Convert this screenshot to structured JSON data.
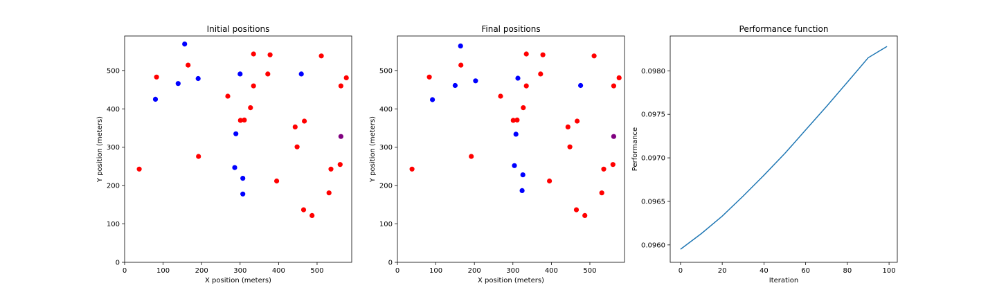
{
  "chart_data": [
    {
      "type": "scatter",
      "title": "Initial positions",
      "xlabel": "X position (meters)",
      "ylabel": "Y position (meters)",
      "xlim": [
        0,
        590
      ],
      "ylim": [
        0,
        590
      ],
      "xticks": [
        0,
        100,
        200,
        300,
        400,
        500
      ],
      "yticks": [
        0,
        100,
        200,
        300,
        400,
        500
      ],
      "grid": false,
      "series": [
        {
          "color": "#ff0000",
          "points": [
            [
              38,
              243
            ],
            [
              83,
              483
            ],
            [
              165,
              514
            ],
            [
              192,
              276
            ],
            [
              268,
              433
            ],
            [
              301,
              370
            ],
            [
              311,
              371
            ],
            [
              327,
              403
            ],
            [
              335,
              543
            ],
            [
              335,
              460
            ],
            [
              372,
              491
            ],
            [
              378,
              541
            ],
            [
              395,
              212
            ],
            [
              443,
              353
            ],
            [
              448,
              301
            ],
            [
              465,
              137
            ],
            [
              467,
              368
            ],
            [
              487,
              122
            ],
            [
              511,
              538
            ],
            [
              531,
              181
            ],
            [
              536,
              243
            ],
            [
              560,
              255
            ],
            [
              562,
              460
            ],
            [
              576,
              481
            ]
          ]
        },
        {
          "color": "#0000ff",
          "points": [
            [
              80,
              425
            ],
            [
              139,
              466
            ],
            [
              156,
              569
            ],
            [
              191,
              479
            ],
            [
              286,
              247
            ],
            [
              289,
              335
            ],
            [
              300,
              491
            ],
            [
              307,
              219
            ],
            [
              307,
              178
            ],
            [
              459,
              491
            ]
          ]
        },
        {
          "color": "#800080",
          "points": [
            [
              562,
              328
            ]
          ]
        }
      ]
    },
    {
      "type": "scatter",
      "title": "Final positions",
      "xlabel": "X position (meters)",
      "ylabel": "Y position (meters)",
      "xlim": [
        0,
        590
      ],
      "ylim": [
        0,
        590
      ],
      "xticks": [
        0,
        100,
        200,
        300,
        400,
        500
      ],
      "yticks": [
        0,
        100,
        200,
        300,
        400,
        500
      ],
      "grid": false,
      "series": [
        {
          "color": "#ff0000",
          "points": [
            [
              38,
              243
            ],
            [
              83,
              483
            ],
            [
              165,
              514
            ],
            [
              192,
              276
            ],
            [
              268,
              433
            ],
            [
              301,
              370
            ],
            [
              311,
              371
            ],
            [
              327,
              403
            ],
            [
              335,
              543
            ],
            [
              335,
              460
            ],
            [
              372,
              491
            ],
            [
              378,
              541
            ],
            [
              395,
              212
            ],
            [
              443,
              353
            ],
            [
              448,
              301
            ],
            [
              465,
              137
            ],
            [
              467,
              368
            ],
            [
              487,
              122
            ],
            [
              511,
              538
            ],
            [
              531,
              181
            ],
            [
              536,
              243
            ],
            [
              560,
              255
            ],
            [
              562,
              460
            ],
            [
              576,
              481
            ]
          ]
        },
        {
          "color": "#0000ff",
          "points": [
            [
              91,
              424
            ],
            [
              150,
              461
            ],
            [
              164,
              564
            ],
            [
              203,
              473
            ],
            [
              304,
              252
            ],
            [
              308,
              334
            ],
            [
              313,
              480
            ],
            [
              326,
              228
            ],
            [
              324,
              187
            ],
            [
              476,
              461
            ]
          ]
        },
        {
          "color": "#800080",
          "points": [
            [
              562,
              328
            ]
          ]
        }
      ]
    },
    {
      "type": "line",
      "title": "Performance function",
      "xlabel": "Iteration",
      "ylabel": "Performance",
      "xlim": [
        -4.95,
        103.95
      ],
      "ylim": [
        0.0958,
        0.0984
      ],
      "xticks": [
        0,
        20,
        40,
        60,
        80,
        100
      ],
      "yticks": [
        0.096,
        0.0965,
        0.097,
        0.0975,
        0.098
      ],
      "ytick_labels": [
        "0.0960",
        "0.0965",
        "0.0970",
        "0.0975",
        "0.0980"
      ],
      "grid": false,
      "series": [
        {
          "color": "#1f77b4",
          "x": [
            0,
            10,
            20,
            30,
            40,
            50,
            60,
            70,
            80,
            90,
            99
          ],
          "values": [
            0.09595,
            0.09613,
            0.09633,
            0.09656,
            0.0968,
            0.09705,
            0.09732,
            0.09759,
            0.09787,
            0.09815,
            0.09828
          ]
        }
      ]
    }
  ]
}
